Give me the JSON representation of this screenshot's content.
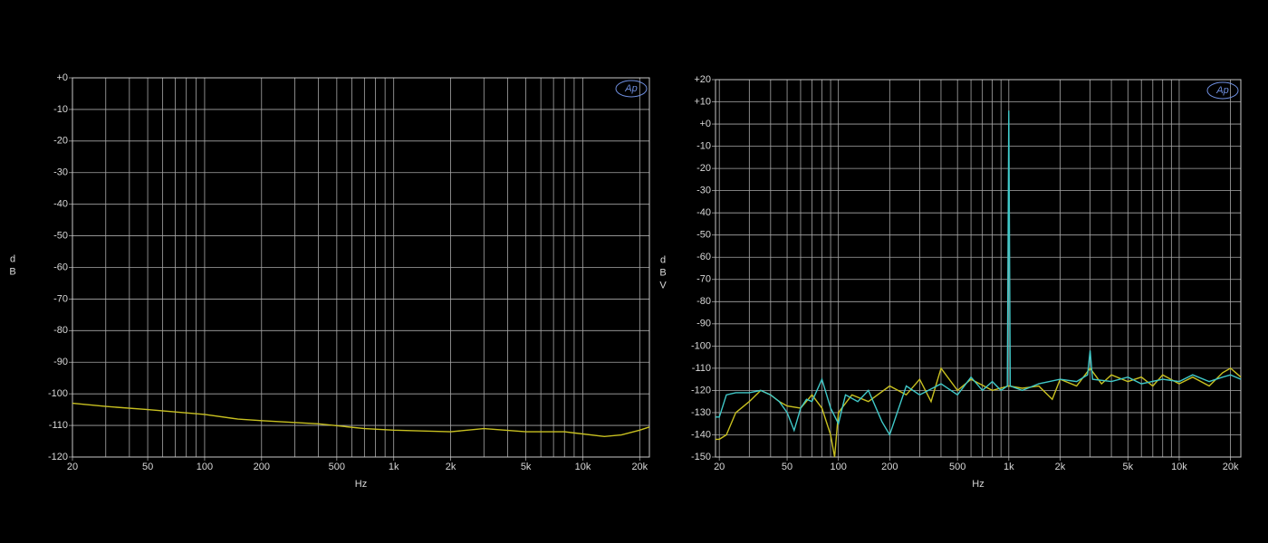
{
  "chart_data": [
    {
      "type": "line",
      "logo": "Ap",
      "xlabel": "Hz",
      "ylabel": "dB",
      "xscale": "log",
      "grid": true,
      "xlim": [
        20,
        22500
      ],
      "ylim": [
        -120,
        0
      ],
      "xticks": [
        20,
        50,
        100,
        200,
        500,
        {
          "value": 1000,
          "label": "1k"
        },
        {
          "value": 2000,
          "label": "2k"
        },
        {
          "value": 5000,
          "label": "5k"
        },
        {
          "value": 10000,
          "label": "10k"
        },
        {
          "value": 20000,
          "label": "20k"
        }
      ],
      "xgrid": [
        30,
        40,
        50,
        60,
        70,
        80,
        90,
        100,
        200,
        300,
        400,
        500,
        600,
        700,
        800,
        900,
        1000,
        2000,
        3000,
        4000,
        5000,
        6000,
        7000,
        8000,
        9000,
        10000,
        20000
      ],
      "yticks": [
        {
          "value": 0,
          "label": "+0"
        },
        -10,
        -20,
        -30,
        -40,
        -50,
        -60,
        -70,
        -80,
        -90,
        -100,
        -110,
        -120
      ],
      "series": [
        {
          "color": "#c8c020",
          "x": [
            20,
            30,
            50,
            100,
            150,
            200,
            400,
            700,
            1000,
            2000,
            3000,
            5000,
            8000,
            13000,
            16000,
            20000,
            22500
          ],
          "values": [
            -103,
            -104,
            -105,
            -106.5,
            -108,
            -108.5,
            -109.5,
            -111,
            -111.5,
            -112,
            -111,
            -112,
            -112,
            -113.5,
            -113,
            -111.5,
            -110.5
          ]
        }
      ]
    },
    {
      "type": "line",
      "logo": "Ap",
      "xlabel": "Hz",
      "ylabel": "dBV",
      "xscale": "log",
      "grid": true,
      "xlim": [
        19,
        23000
      ],
      "ylim": [
        -150,
        20
      ],
      "xticks": [
        20,
        50,
        100,
        200,
        500,
        {
          "value": 1000,
          "label": "1k"
        },
        {
          "value": 2000,
          "label": "2k"
        },
        {
          "value": 5000,
          "label": "5k"
        },
        {
          "value": 10000,
          "label": "10k"
        },
        {
          "value": 20000,
          "label": "20k"
        }
      ],
      "xgrid": [
        20,
        30,
        40,
        50,
        60,
        70,
        80,
        90,
        100,
        200,
        300,
        400,
        500,
        600,
        700,
        800,
        900,
        1000,
        2000,
        3000,
        4000,
        5000,
        6000,
        7000,
        8000,
        9000,
        10000,
        20000
      ],
      "yticks": [
        {
          "value": 20,
          "label": "+20"
        },
        {
          "value": 10,
          "label": "+10"
        },
        {
          "value": 0,
          "label": "+0"
        },
        -10,
        -20,
        -30,
        -40,
        -50,
        -60,
        -70,
        -80,
        -90,
        -100,
        -110,
        -120,
        -130,
        -140,
        -150
      ],
      "series": [
        {
          "color": "#c8c020",
          "x": [
            19,
            20,
            22,
            25,
            30,
            35,
            40,
            45,
            50,
            60,
            70,
            80,
            90,
            95,
            100,
            120,
            150,
            200,
            250,
            300,
            350,
            400,
            500,
            600,
            800,
            1000,
            1200,
            1500,
            1800,
            2000,
            2500,
            3000,
            3500,
            4000,
            5000,
            6000,
            7000,
            8000,
            10000,
            12000,
            15000,
            18000,
            20000,
            23000
          ],
          "values": [
            -142,
            -142,
            -140,
            -130,
            -125,
            -120,
            -122,
            -125,
            -127,
            -128,
            -122,
            -128,
            -140,
            -150,
            -130,
            -122,
            -125,
            -118,
            -122,
            -115,
            -125,
            -110,
            -120,
            -115,
            -120,
            -118,
            -119,
            -118,
            -124,
            -115,
            -118,
            -110,
            -117,
            -113,
            -116,
            -114,
            -118,
            -113,
            -117,
            -114,
            -118,
            -112,
            -110,
            -114
          ]
        },
        {
          "color": "#40c8c8",
          "x": [
            19,
            20,
            22,
            25,
            30,
            35,
            40,
            45,
            50,
            55,
            60,
            65,
            70,
            80,
            90,
            100,
            110,
            130,
            150,
            180,
            200,
            250,
            300,
            400,
            500,
            600,
            700,
            800,
            900,
            980,
            1000,
            1020,
            1200,
            1500,
            2000,
            2500,
            2900,
            3000,
            3100,
            4000,
            5000,
            6000,
            8000,
            10000,
            12000,
            15000,
            18000,
            20000,
            23000
          ],
          "values": [
            -132,
            -132,
            -122,
            -121,
            -121,
            -120,
            -122,
            -125,
            -130,
            -138,
            -128,
            -124,
            -125,
            -115,
            -128,
            -135,
            -122,
            -125,
            -120,
            -134,
            -140,
            -118,
            -122,
            -117,
            -122,
            -114,
            -120,
            -116,
            -120,
            -118,
            6,
            -118,
            -120,
            -117,
            -115,
            -116,
            -113,
            -102,
            -115,
            -116,
            -114,
            -117,
            -115,
            -116,
            -113,
            -116,
            -114,
            -113,
            -115
          ]
        }
      ]
    }
  ]
}
